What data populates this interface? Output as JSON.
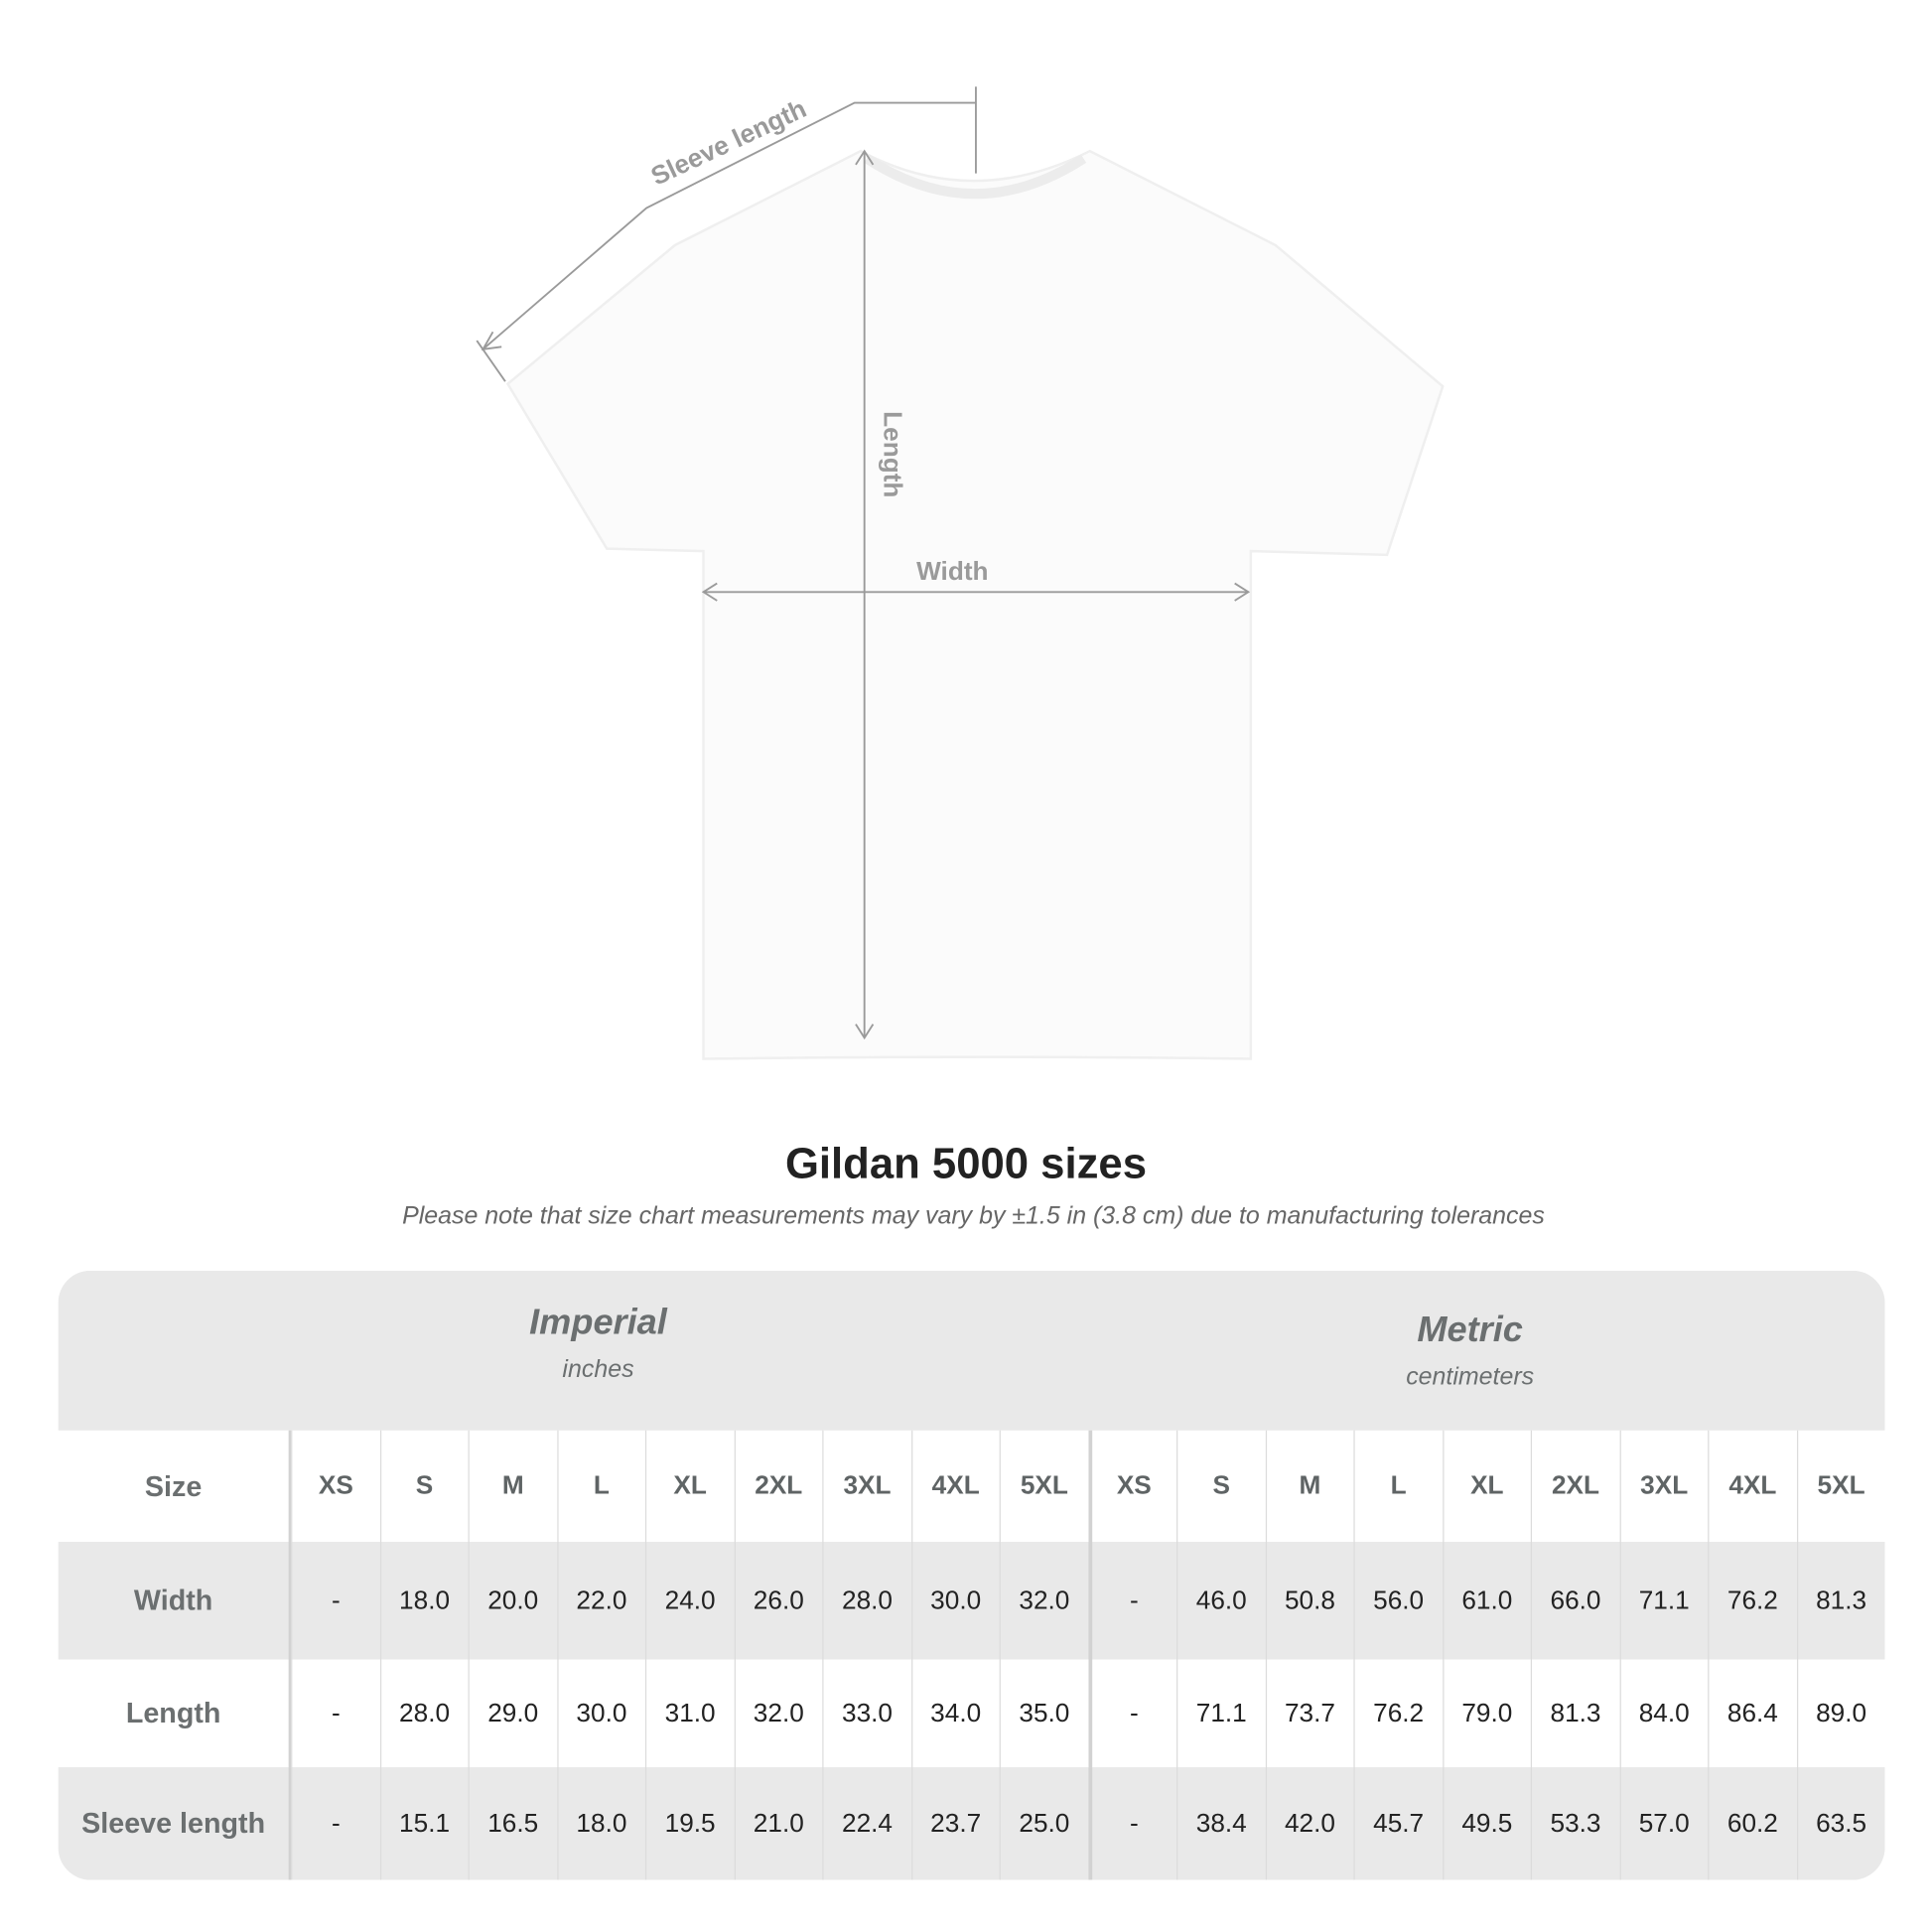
{
  "diagram": {
    "sleeve_label": "Sleeve length",
    "length_label": "Length",
    "width_label": "Width"
  },
  "title": "Gildan 5000 sizes",
  "subtitle": "Please note that size chart measurements may vary by ±1.5 in (3.8 cm) due to manufacturing tolerances",
  "table": {
    "imperial": {
      "heading": "Imperial",
      "unit": "inches"
    },
    "metric": {
      "heading": "Metric",
      "unit": "centimeters"
    },
    "size_label": "Size",
    "sizes": [
      "XS",
      "S",
      "M",
      "L",
      "XL",
      "2XL",
      "3XL",
      "4XL",
      "5XL"
    ],
    "rows": [
      {
        "label": "Width",
        "imperial": [
          "-",
          "18.0",
          "20.0",
          "22.0",
          "24.0",
          "26.0",
          "28.0",
          "30.0",
          "32.0"
        ],
        "metric": [
          "-",
          "46.0",
          "50.8",
          "56.0",
          "61.0",
          "66.0",
          "71.1",
          "76.2",
          "81.3"
        ]
      },
      {
        "label": "Length",
        "imperial": [
          "-",
          "28.0",
          "29.0",
          "30.0",
          "31.0",
          "32.0",
          "33.0",
          "34.0",
          "35.0"
        ],
        "metric": [
          "-",
          "71.1",
          "73.7",
          "76.2",
          "79.0",
          "81.3",
          "84.0",
          "86.4",
          "89.0"
        ]
      },
      {
        "label": "Sleeve length",
        "imperial": [
          "-",
          "15.1",
          "16.5",
          "18.0",
          "19.5",
          "21.0",
          "22.4",
          "23.7",
          "25.0"
        ],
        "metric": [
          "-",
          "38.4",
          "42.0",
          "45.7",
          "49.5",
          "53.3",
          "57.0",
          "60.2",
          "63.5"
        ]
      }
    ]
  },
  "colors": {
    "band": "#e9e9e9",
    "label_text": "#6b6f70",
    "value_text": "#222222",
    "guide": "#9a9a9a"
  }
}
